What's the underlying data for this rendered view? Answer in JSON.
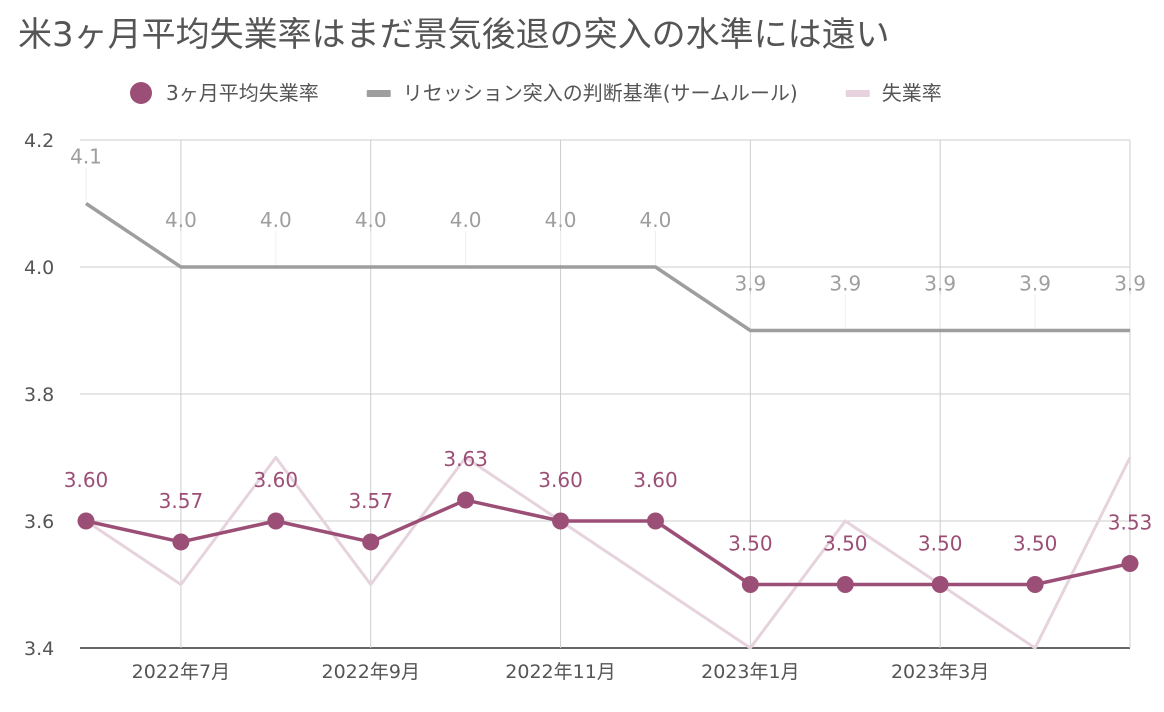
{
  "chart_data": {
    "type": "line",
    "title": "米3ヶ月平均失業率はまだ景気後退の突入の水準には遠い",
    "xlabel": "",
    "ylabel": "",
    "ylim": [
      3.4,
      4.2
    ],
    "yticks": [
      "3.4",
      "3.6",
      "3.8",
      "4.0",
      "4.2"
    ],
    "grid": true,
    "legend_position": "top",
    "categories": [
      "2022-06",
      "2022-07",
      "2022-08",
      "2022-09",
      "2022-10",
      "2022-11",
      "2022-12",
      "2023-01",
      "2023-02",
      "2023-03",
      "2023-04",
      "2023-05"
    ],
    "x_tick_labels": [
      "",
      "2022年7月",
      "",
      "2022年9月",
      "",
      "2022年11月",
      "",
      "2023年1月",
      "",
      "2023年3月",
      "",
      ""
    ],
    "series": [
      {
        "name": "3ヶ月平均失業率",
        "color": "#9c4f76",
        "marker": "circle",
        "values": [
          3.6,
          3.567,
          3.6,
          3.567,
          3.633,
          3.6,
          3.6,
          3.5,
          3.5,
          3.5,
          3.5,
          3.533
        ],
        "labels": [
          "3.60",
          "3.57",
          "3.60",
          "3.57",
          "3.63",
          "3.60",
          "3.60",
          "3.50",
          "3.50",
          "3.50",
          "3.50",
          "3.53"
        ]
      },
      {
        "name": "リセッション突入の判断基準(サームルール)",
        "color": "#9e9e9e",
        "marker": "none",
        "values": [
          4.1,
          4.0,
          4.0,
          4.0,
          4.0,
          4.0,
          4.0,
          3.9,
          3.9,
          3.9,
          3.9,
          3.9
        ],
        "labels": [
          "4.1",
          "4.0",
          "4.0",
          "4.0",
          "4.0",
          "4.0",
          "4.0",
          "3.9",
          "3.9",
          "3.9",
          "3.9",
          "3.9"
        ]
      },
      {
        "name": "失業率",
        "color": "#e6d3dd",
        "marker": "none",
        "values": [
          3.6,
          3.5,
          3.7,
          3.5,
          3.7,
          3.6,
          3.5,
          3.4,
          3.6,
          3.5,
          3.4,
          3.7
        ]
      }
    ]
  }
}
